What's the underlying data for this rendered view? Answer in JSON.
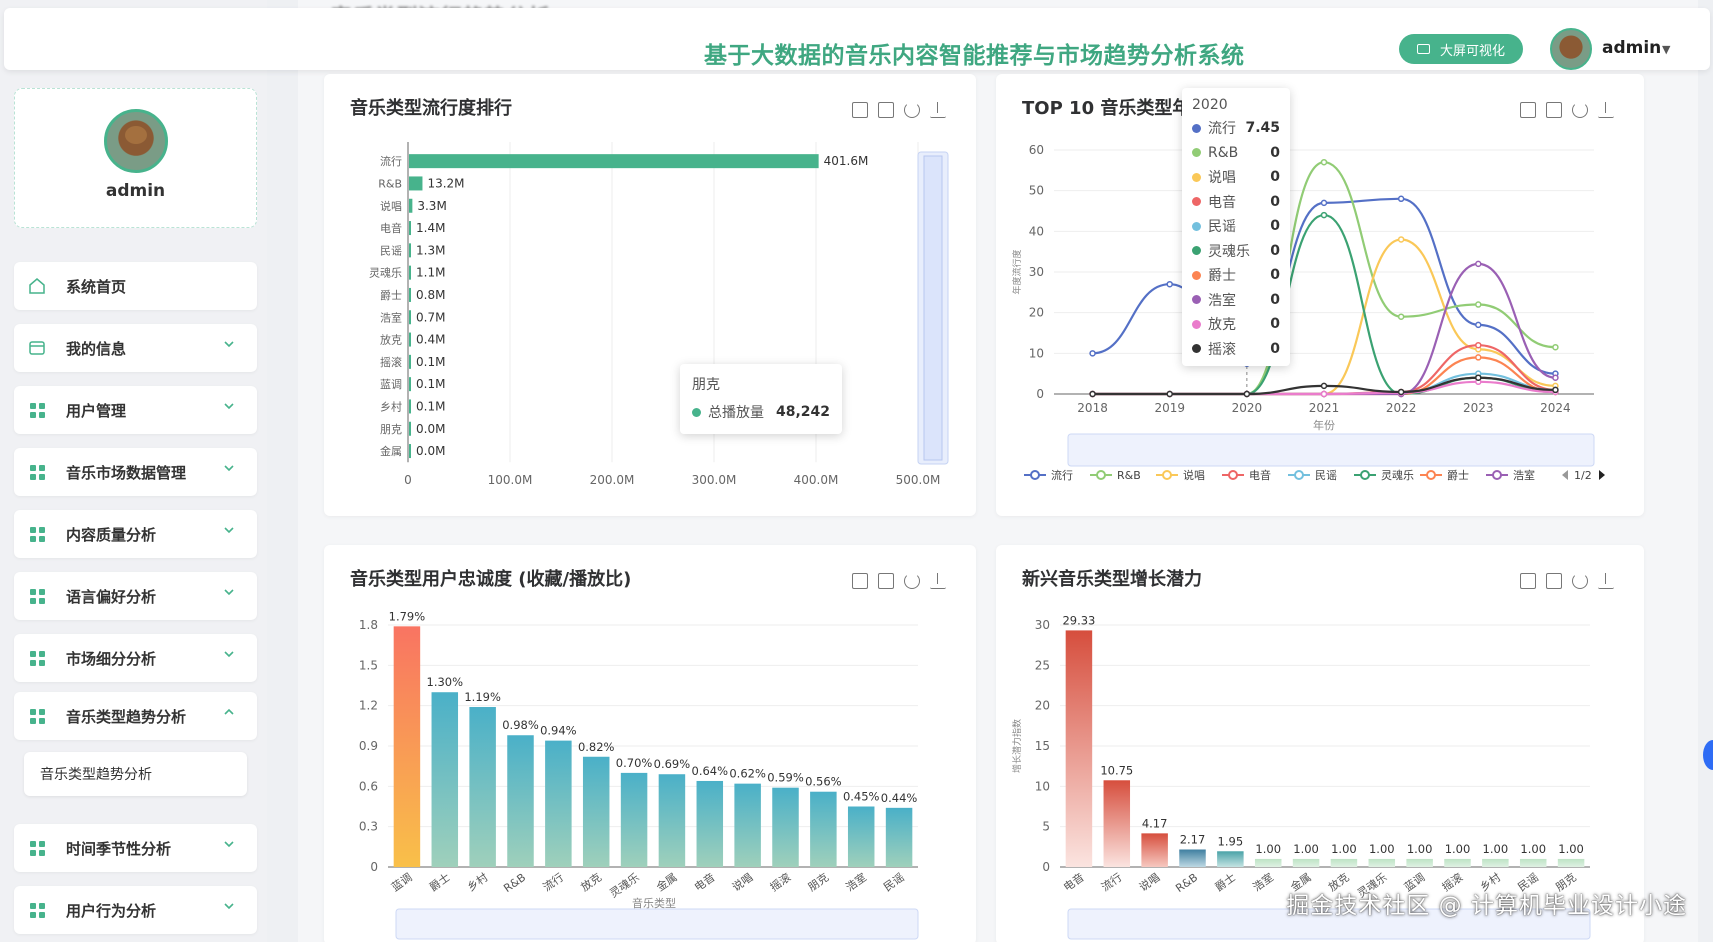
{
  "header": {
    "title": "基于大数据的音乐内容智能推荐与市场趋势分析系统",
    "bigscreen_label": "大屏可视化",
    "username": "admin",
    "background_title": "音乐类型流行趋势分析"
  },
  "sidebar": {
    "profile_name": "admin",
    "items": [
      {
        "label": "系统首页",
        "icon": "home-icon",
        "has_chevron": false
      },
      {
        "label": "我的信息",
        "icon": "wallet-icon",
        "has_chevron": true
      },
      {
        "label": "用户管理",
        "icon": "grid-icon",
        "has_chevron": true
      },
      {
        "label": "音乐市场数据管理",
        "icon": "grid-icon",
        "has_chevron": true
      },
      {
        "label": "内容质量分析",
        "icon": "grid-icon",
        "has_chevron": true
      },
      {
        "label": "语言偏好分析",
        "icon": "grid-icon",
        "has_chevron": true
      },
      {
        "label": "市场细分分析",
        "icon": "grid-icon",
        "has_chevron": true
      },
      {
        "label": "音乐类型趋势分析",
        "icon": "grid-icon",
        "has_chevron": true,
        "expanded": true
      },
      {
        "label": "时间季节性分析",
        "icon": "grid-icon",
        "has_chevron": true
      },
      {
        "label": "用户行为分析",
        "icon": "grid-icon",
        "has_chevron": true
      }
    ],
    "submenu_label": "音乐类型趋势分析"
  },
  "watermark": "掘金技术社区 @ 计算机毕业设计小途",
  "accent_color": "#47b38c",
  "chart_data": [
    {
      "id": "popularity",
      "type": "bar",
      "orientation": "horizontal",
      "title": "音乐类型流行度排行",
      "categories": [
        "流行",
        "R&B",
        "说唱",
        "电音",
        "民谣",
        "灵魂乐",
        "爵士",
        "浩室",
        "放克",
        "摇滚",
        "蓝调",
        "乡村",
        "朋克",
        "金属"
      ],
      "values": [
        401.6,
        13.2,
        3.3,
        1.4,
        1.3,
        1.1,
        0.8,
        0.7,
        0.4,
        0.1,
        0.1,
        0.1,
        0.0,
        0.0
      ],
      "value_labels": [
        "401.6M",
        "13.2M",
        "3.3M",
        "1.4M",
        "1.3M",
        "1.1M",
        "0.8M",
        "0.7M",
        "0.4M",
        "0.1M",
        "0.1M",
        "0.1M",
        "0.0M",
        "0.0M"
      ],
      "xticks": [
        "0",
        "100.0M",
        "200.0M",
        "300.0M",
        "400.0M",
        "500.0M"
      ],
      "xlim": [
        0,
        500
      ],
      "color": "#47b38c",
      "tooltip": {
        "category": "朋克",
        "series": "总播放量",
        "value": "48,242"
      }
    },
    {
      "id": "top10_trend",
      "type": "line",
      "title": "TOP 10 音乐类型年",
      "x": [
        "2018",
        "2019",
        "2020",
        "2021",
        "2022",
        "2023",
        "2024"
      ],
      "ylim": [
        0,
        60
      ],
      "yticks": [
        "0",
        "10",
        "20",
        "30",
        "40",
        "50",
        "60"
      ],
      "xlabel": "年份",
      "ylabel": "年度流行度",
      "legend_page": "1/2",
      "series": [
        {
          "name": "流行",
          "color": "#5470c6",
          "values": [
            10,
            27,
            7.45,
            47,
            48,
            17,
            5
          ]
        },
        {
          "name": "R&B",
          "color": "#91cc75",
          "values": [
            0,
            0,
            0,
            57,
            19,
            22,
            11.5
          ]
        },
        {
          "name": "说唱",
          "color": "#fac858",
          "values": [
            0,
            0,
            0,
            0,
            38,
            11,
            2
          ]
        },
        {
          "name": "电音",
          "color": "#ee6666",
          "values": [
            0,
            0,
            0,
            0,
            0.5,
            12,
            1
          ]
        },
        {
          "name": "民谣",
          "color": "#73c0de",
          "values": [
            0,
            0,
            0,
            0,
            0.3,
            5,
            1
          ]
        },
        {
          "name": "灵魂乐",
          "color": "#3ba272",
          "values": [
            0,
            0,
            0,
            44,
            0,
            4,
            0.5
          ]
        },
        {
          "name": "爵士",
          "color": "#fc8452",
          "values": [
            0,
            0,
            0,
            0,
            0,
            9,
            0.5
          ]
        },
        {
          "name": "浩室",
          "color": "#9a60b4",
          "values": [
            0,
            0,
            0,
            0,
            0,
            32,
            4
          ]
        },
        {
          "name": "放克",
          "color": "#ea7ccc",
          "values": [
            0,
            0,
            0,
            0,
            0.3,
            3,
            0.5
          ]
        },
        {
          "name": "摇滚",
          "color": "#333333",
          "values": [
            0,
            0,
            0,
            2,
            0.5,
            4,
            1
          ]
        }
      ],
      "tooltip": {
        "title": "2020",
        "rows": [
          {
            "name": "流行",
            "color": "#5470c6",
            "value": "7.45"
          },
          {
            "name": "R&B",
            "color": "#91cc75",
            "value": "0"
          },
          {
            "name": "说唱",
            "color": "#fac858",
            "value": "0"
          },
          {
            "name": "电音",
            "color": "#ee6666",
            "value": "0"
          },
          {
            "name": "民谣",
            "color": "#73c0de",
            "value": "0"
          },
          {
            "name": "灵魂乐",
            "color": "#3ba272",
            "value": "0"
          },
          {
            "name": "爵士",
            "color": "#fc8452",
            "value": "0"
          },
          {
            "name": "浩室",
            "color": "#9a60b4",
            "value": "0"
          },
          {
            "name": "放克",
            "color": "#ea7ccc",
            "value": "0"
          },
          {
            "name": "摇滚",
            "color": "#333333",
            "value": "0"
          }
        ]
      }
    },
    {
      "id": "loyalty",
      "type": "bar",
      "title": "音乐类型用户忠诚度 (收藏/播放比)",
      "categories": [
        "蓝调",
        "爵士",
        "乡村",
        "R&B",
        "流行",
        "放克",
        "灵魂乐",
        "金属",
        "电音",
        "说唱",
        "摇滚",
        "朋克",
        "浩室",
        "民谣"
      ],
      "values": [
        1.79,
        1.3,
        1.19,
        0.98,
        0.94,
        0.82,
        0.7,
        0.69,
        0.64,
        0.62,
        0.59,
        0.56,
        0.45,
        0.44
      ],
      "value_labels": [
        "1.79%",
        "1.30%",
        "1.19%",
        "0.98%",
        "0.94%",
        "0.82%",
        "0.70%",
        "0.69%",
        "0.64%",
        "0.62%",
        "0.59%",
        "0.56%",
        "0.45%",
        "0.44%"
      ],
      "yticks": [
        "0",
        "0.3",
        "0.6",
        "0.9",
        "1.2",
        "1.5",
        "1.8"
      ],
      "ylim": [
        0,
        1.8
      ],
      "xlabel": "音乐类型"
    },
    {
      "id": "growth",
      "type": "bar",
      "title": "新兴音乐类型增长潜力",
      "categories": [
        "电音",
        "流行",
        "说唱",
        "R&B",
        "爵士",
        "浩室",
        "金属",
        "放克",
        "灵魂乐",
        "蓝调",
        "摇滚",
        "乡村",
        "民谣",
        "朋克"
      ],
      "values": [
        29.33,
        10.75,
        4.17,
        2.17,
        1.95,
        1.0,
        1.0,
        1.0,
        1.0,
        1.0,
        1.0,
        1.0,
        1.0,
        1.0
      ],
      "value_labels": [
        "29.33",
        "10.75",
        "4.17",
        "2.17",
        "1.95",
        "1.00",
        "1.00",
        "1.00",
        "1.00",
        "1.00",
        "1.00",
        "1.00",
        "1.00",
        "1.00"
      ],
      "yticks": [
        "0",
        "5",
        "10",
        "15",
        "20",
        "25",
        "30"
      ],
      "ylim": [
        0,
        30
      ],
      "ylabel": "增长潜力指数"
    }
  ]
}
